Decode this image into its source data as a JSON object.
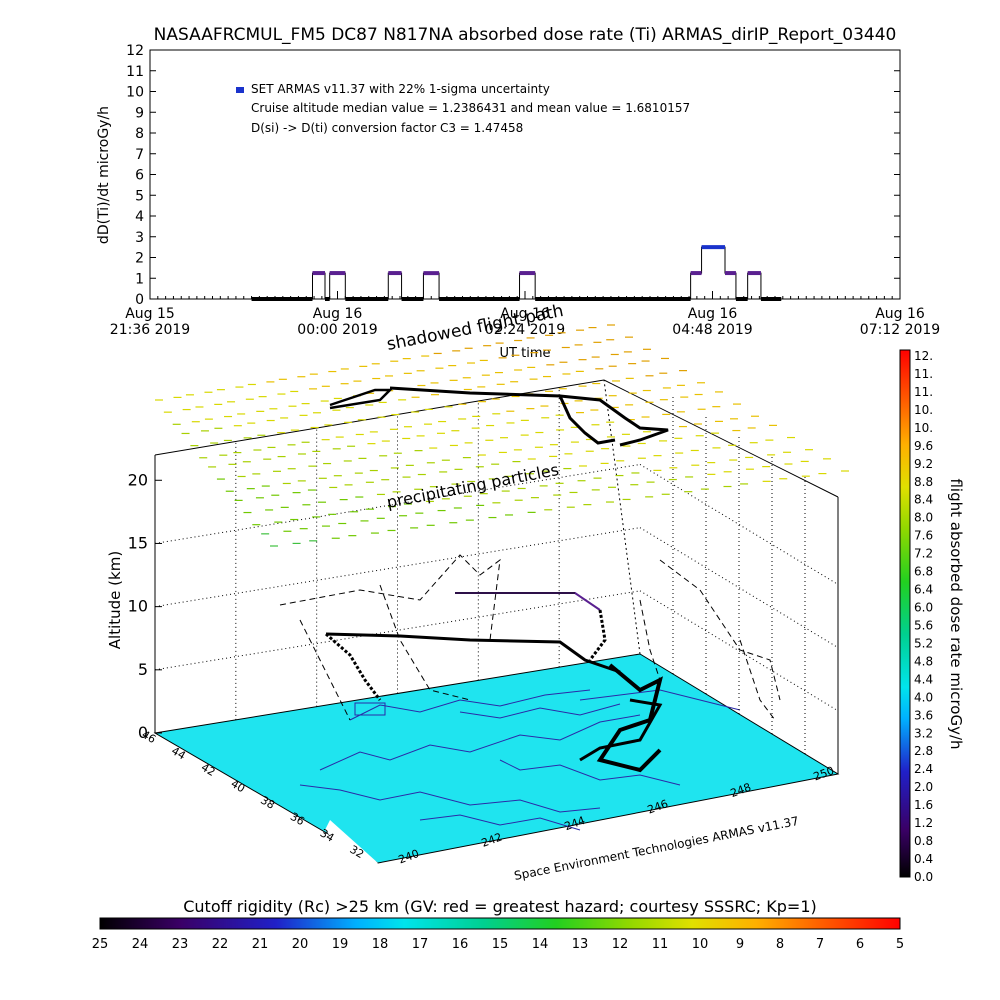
{
  "title": "NASAAFRCMUL_FM5 DC87 N817NA absorbed dose rate (Ti) ARMAS_dirIP_Report_03440",
  "top_chart": {
    "ylabel": "dD(Ti)/dt microGy/h",
    "xlabel": "UT time",
    "legend_marker_color": "#1a33cc",
    "legend_lines": [
      "SET ARMAS v11.37 with 22% 1-sigma uncertainty",
      "Cruise altitude median value = 1.2386431 and mean value = 1.6810157",
      "D(si) -> D(ti) conversion factor C3 = 1.47458"
    ],
    "x_ticks": [
      {
        "l1": "Aug 15",
        "l2": "21:36 2019"
      },
      {
        "l1": "Aug 16",
        "l2": "00:00 2019"
      },
      {
        "l1": "Aug 16",
        "l2": "02:24 2019"
      },
      {
        "l1": "Aug 16",
        "l2": "04:48 2019"
      },
      {
        "l1": "Aug 16",
        "l2": "07:12 2019"
      }
    ]
  },
  "chart_data": [
    {
      "type": "line",
      "title": "NASAAFRCMUL_FM5 DC87 N817NA absorbed dose rate (Ti) ARMAS_dirIP_Report_03440",
      "xlabel": "UT time",
      "ylabel": "dD(Ti)/dt microGy/h",
      "x_unit": "hours from Aug 15 21:36 2019 UT",
      "xlim": [
        0,
        9.6
      ],
      "ylim": [
        0,
        12
      ],
      "y_ticks": [
        "0",
        "1",
        "2",
        "3",
        "4",
        "5",
        "6",
        "7",
        "8",
        "9",
        "10",
        "11",
        "12"
      ],
      "series": [
        {
          "name": "SET ARMAS v11.37 with 22% 1-sigma uncertainty",
          "segments": [
            {
              "x0": 1.3,
              "x1": 2.08,
              "y": 0
            },
            {
              "x0": 2.08,
              "x1": 2.24,
              "y": 1.25
            },
            {
              "x0": 2.24,
              "x1": 2.3,
              "y": 0
            },
            {
              "x0": 2.3,
              "x1": 2.5,
              "y": 1.25
            },
            {
              "x0": 2.5,
              "x1": 3.05,
              "y": 0
            },
            {
              "x0": 3.05,
              "x1": 3.22,
              "y": 1.25
            },
            {
              "x0": 3.22,
              "x1": 3.5,
              "y": 0
            },
            {
              "x0": 3.5,
              "x1": 3.7,
              "y": 1.25
            },
            {
              "x0": 3.7,
              "x1": 4.73,
              "y": 0
            },
            {
              "x0": 4.73,
              "x1": 4.93,
              "y": 1.25
            },
            {
              "x0": 4.93,
              "x1": 6.92,
              "y": 0
            },
            {
              "x0": 6.92,
              "x1": 7.06,
              "y": 1.25
            },
            {
              "x0": 7.06,
              "x1": 7.36,
              "y": 2.5
            },
            {
              "x0": 7.36,
              "x1": 7.5,
              "y": 1.25
            },
            {
              "x0": 7.5,
              "x1": 7.65,
              "y": 0
            },
            {
              "x0": 7.65,
              "x1": 7.82,
              "y": 1.25
            },
            {
              "x0": 7.82,
              "x1": 8.08,
              "y": 0
            }
          ]
        }
      ]
    },
    {
      "type": "scatter",
      "title": "",
      "xlabel": "",
      "ylabel": "Altitude (km)",
      "zlim": [
        0,
        22
      ],
      "z_ticks": [
        "0",
        "5",
        "10",
        "15",
        "20"
      ],
      "x_ticks": [
        "240",
        "242",
        "244",
        "246",
        "248",
        "250"
      ],
      "y_ticks": [
        "46",
        "44",
        "42",
        "40",
        "38",
        "36",
        "34",
        "32"
      ],
      "annotations": [
        "shadowed flight path",
        "precipitating particles",
        "Space Environment Technologies ARMAS v11.37"
      ]
    }
  ],
  "colorbar_right": {
    "label": "flight absorbed dose rate microGy/h",
    "ticks": [
      "12.",
      "11.",
      "11.",
      "10.",
      "10.",
      "9.6",
      "9.2",
      "8.8",
      "8.4",
      "8.0",
      "7.6",
      "7.2",
      "6.8",
      "6.4",
      "6.0",
      "5.6",
      "5.2",
      "4.8",
      "4.4",
      "4.0",
      "3.6",
      "3.2",
      "2.8",
      "2.4",
      "2.0",
      "1.6",
      "1.2",
      "0.8",
      "0.4",
      "0.0"
    ]
  },
  "colorbar_bottom": {
    "label": "Cutoff rigidity (Rc) >25 km (GV: red = greatest hazard; courtesy SSSRC; Kp=1)",
    "ticks": [
      "25",
      "24",
      "23",
      "22",
      "21",
      "20",
      "19",
      "18",
      "17",
      "16",
      "15",
      "14",
      "13",
      "12",
      "11",
      "10",
      "9",
      "8",
      "7",
      "6",
      "5"
    ]
  },
  "colors": {
    "ground": "#1fe4ef",
    "coast": "#2a2aa8",
    "track": "#000000",
    "track_purple": "#5a2090"
  }
}
